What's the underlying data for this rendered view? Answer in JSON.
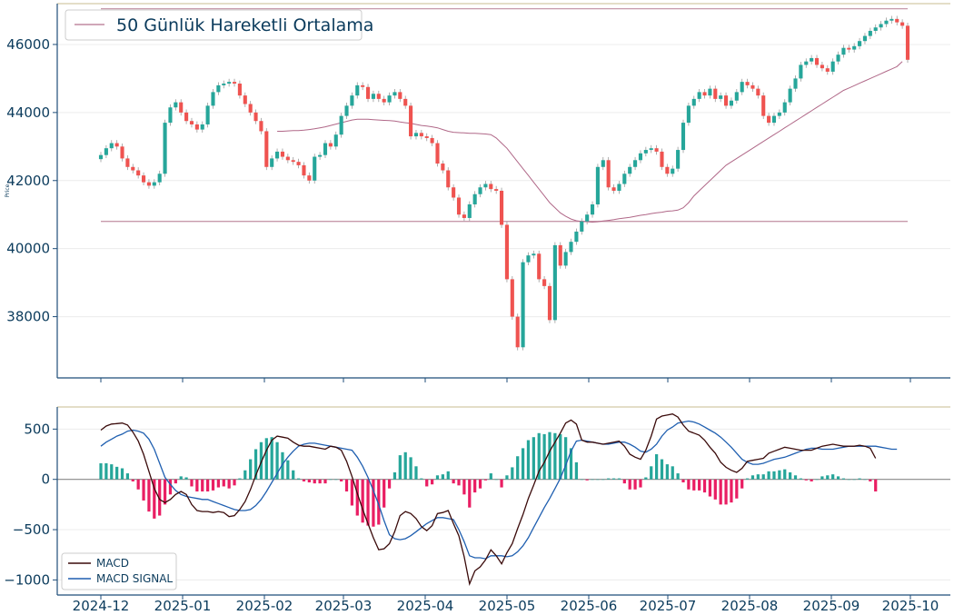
{
  "chart_data": [
    {
      "type": "candlestick",
      "ylabel": "Price",
      "ylim": [
        36200,
        47200
      ],
      "yticks": [
        38000,
        40000,
        42000,
        44000,
        46000
      ],
      "legend": {
        "placement": "top-left",
        "entries": [
          {
            "label": "50 Günlük Hareketli Ortalama",
            "color": "#c08aa0"
          }
        ]
      },
      "upper_line": 47050,
      "lower_line": 40800,
      "grid": "horizontal",
      "colors": {
        "up": "#26a69a",
        "down": "#ef5350",
        "ma": "#b06888",
        "hline": "#c79aab"
      },
      "closes": [
        42750,
        42950,
        43100,
        43000,
        42650,
        42400,
        42300,
        42150,
        41950,
        41850,
        41950,
        42200,
        43700,
        44150,
        44300,
        44000,
        43750,
        43650,
        43500,
        43650,
        44200,
        44600,
        44800,
        44850,
        44900,
        44850,
        44500,
        44250,
        44000,
        43750,
        43450,
        42400,
        42650,
        42850,
        42700,
        42600,
        42550,
        42450,
        42150,
        42000,
        42700,
        42750,
        43100,
        43000,
        43350,
        43900,
        44200,
        44500,
        44800,
        44750,
        44400,
        44550,
        44400,
        44300,
        44500,
        44600,
        44400,
        44200,
        43300,
        43400,
        43300,
        43250,
        43100,
        42500,
        42300,
        41800,
        41500,
        41000,
        40900,
        41300,
        41600,
        41800,
        41900,
        41750,
        41700,
        40700,
        39100,
        38000,
        37100,
        39600,
        39800,
        39850,
        39100,
        38900,
        37900,
        40100,
        39500,
        39900,
        40200,
        40500,
        40800,
        41000,
        41300,
        42400,
        42600,
        41800,
        41700,
        41900,
        42200,
        42400,
        42600,
        42800,
        42900,
        42950,
        42850,
        42400,
        42200,
        42350,
        42900,
        43700,
        44200,
        44400,
        44600,
        44500,
        44700,
        44400,
        44500,
        44200,
        44350,
        44600,
        44900,
        44800,
        44700,
        44500,
        43900,
        43700,
        43900,
        44000,
        44300,
        44700,
        45000,
        45400,
        45500,
        45600,
        45400,
        45300,
        45200,
        45500,
        45700,
        45900,
        45850,
        45950,
        46100,
        46250,
        46400,
        46500,
        46600,
        46700,
        46750,
        46650,
        46550,
        45550
      ],
      "ma_values": [
        null,
        null,
        null,
        null,
        null,
        null,
        null,
        null,
        null,
        null,
        null,
        null,
        null,
        null,
        null,
        null,
        null,
        null,
        null,
        null,
        null,
        null,
        null,
        null,
        null,
        null,
        null,
        null,
        null,
        null,
        null,
        null,
        null,
        43450,
        43450,
        43460,
        43470,
        43470,
        43480,
        43500,
        43520,
        43550,
        43580,
        43620,
        43660,
        43700,
        43740,
        43780,
        43800,
        43800,
        43800,
        43790,
        43780,
        43770,
        43760,
        43750,
        43720,
        43700,
        43680,
        43650,
        43620,
        43600,
        43580,
        43550,
        43500,
        43450,
        43420,
        43410,
        43400,
        43390,
        43390,
        43380,
        43370,
        43350,
        43250,
        43100,
        42950,
        42750,
        42550,
        42350,
        42150,
        41950,
        41750,
        41550,
        41350,
        41200,
        41050,
        40950,
        40870,
        40820,
        40800,
        40790,
        40780,
        40790,
        40810,
        40830,
        40850,
        40880,
        40900,
        40920,
        40950,
        40980,
        41000,
        41030,
        41050,
        41070,
        41100,
        41110,
        41130,
        41200,
        41350,
        41550,
        41700,
        41850,
        42000,
        42150,
        42300,
        42450,
        42550,
        42650,
        42750,
        42850,
        42950,
        43050,
        43150,
        43250,
        43350,
        43450,
        43550,
        43650,
        43750,
        43850,
        43950,
        44050,
        44150,
        44250,
        44350,
        44450,
        44550,
        44650,
        44720,
        44790,
        44860,
        44930,
        45000,
        45070,
        45140,
        45210,
        45280,
        45350,
        45500
      ]
    },
    {
      "type": "line+bar",
      "ylim": [
        -1150,
        720
      ],
      "yticks": [
        -1000,
        -500,
        0,
        500
      ],
      "x_ticks": [
        "2024-12",
        "2025-01",
        "2025-02",
        "2025-03",
        "2025-04",
        "2025-05",
        "2025-06",
        "2025-07",
        "2025-08",
        "2025-09",
        "2025-10"
      ],
      "legend": {
        "placement": "bottom-left",
        "entries": [
          {
            "label": "MACD",
            "color": "#3a0a0a"
          },
          {
            "label": "MACD SIGNAL",
            "color": "#1f5fb0"
          }
        ]
      },
      "colors": {
        "macd": "#3a0a0a",
        "signal": "#1f5fb0",
        "hist_pos": "#26a69a",
        "hist_neg": "#e91e63",
        "zero": "#888888"
      },
      "macd": [
        490,
        530,
        550,
        555,
        560,
        540,
        470,
        380,
        250,
        80,
        -90,
        -200,
        -230,
        -200,
        -150,
        -120,
        -150,
        -250,
        -310,
        -320,
        -320,
        -330,
        -320,
        -330,
        -370,
        -360,
        -300,
        -220,
        -100,
        40,
        170,
        290,
        390,
        430,
        420,
        410,
        370,
        340,
        330,
        330,
        320,
        310,
        300,
        330,
        320,
        290,
        180,
        30,
        -140,
        -300,
        -440,
        -580,
        -700,
        -690,
        -640,
        -520,
        -360,
        -320,
        -340,
        -390,
        -470,
        -510,
        -460,
        -340,
        -330,
        -310,
        -440,
        -560,
        -770,
        -1040,
        -910,
        -870,
        -800,
        -700,
        -760,
        -840,
        -730,
        -640,
        -490,
        -350,
        -190,
        -60,
        80,
        170,
        280,
        370,
        460,
        560,
        590,
        550,
        390,
        370,
        370,
        360,
        350,
        360,
        370,
        380,
        330,
        250,
        220,
        200,
        290,
        430,
        600,
        630,
        640,
        650,
        620,
        540,
        480,
        460,
        440,
        390,
        320,
        260,
        170,
        120,
        90,
        70,
        110,
        180,
        190,
        200,
        210,
        260,
        280,
        300,
        320,
        310,
        300,
        290,
        290,
        290,
        310,
        330,
        340,
        350,
        340,
        330,
        330,
        330,
        340,
        330,
        310,
        210
      ],
      "signal": [
        330,
        370,
        400,
        430,
        450,
        480,
        490,
        480,
        460,
        400,
        300,
        160,
        20,
        -50,
        -110,
        -150,
        -170,
        -180,
        -190,
        -200,
        -200,
        -220,
        -240,
        -260,
        -280,
        -300,
        -310,
        -310,
        -300,
        -260,
        -200,
        -120,
        -30,
        60,
        150,
        220,
        280,
        330,
        350,
        360,
        360,
        350,
        340,
        330,
        320,
        310,
        300,
        290,
        220,
        130,
        20,
        -110,
        -250,
        -410,
        -550,
        -590,
        -600,
        -590,
        -560,
        -520,
        -480,
        -440,
        -410,
        -380,
        -380,
        -390,
        -400,
        -500,
        -620,
        -760,
        -780,
        -780,
        -790,
        -760,
        -760,
        -760,
        -770,
        -760,
        -720,
        -660,
        -580,
        -480,
        -380,
        -280,
        -190,
        -90,
        10,
        140,
        280,
        380,
        390,
        380,
        370,
        360,
        350,
        350,
        360,
        370,
        370,
        350,
        320,
        280,
        270,
        300,
        350,
        430,
        490,
        520,
        560,
        570,
        580,
        570,
        550,
        520,
        490,
        460,
        420,
        370,
        320,
        260,
        200,
        170,
        150,
        150,
        160,
        180,
        200,
        210,
        220,
        240,
        260,
        280,
        300,
        310,
        310,
        300,
        300,
        300,
        310,
        320,
        330,
        330,
        330,
        330,
        330,
        330,
        320,
        310,
        300,
        300
      ]
    }
  ]
}
